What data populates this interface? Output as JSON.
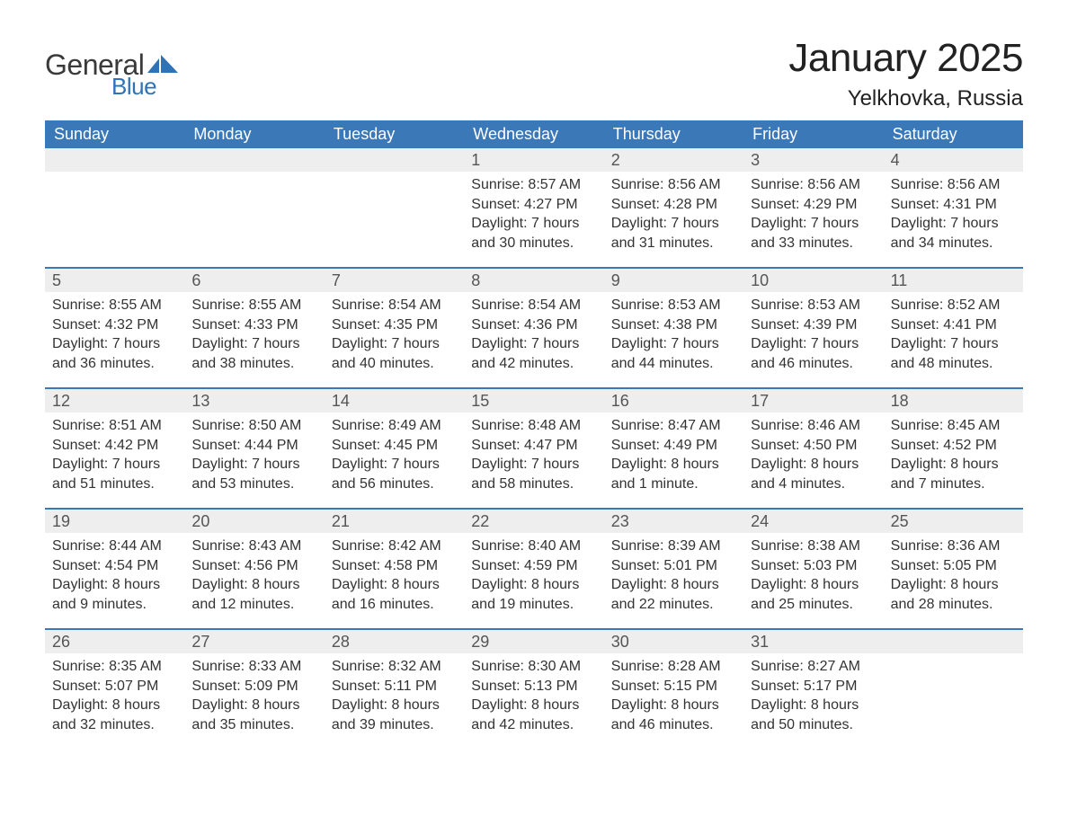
{
  "colors": {
    "header_bg": "#3b78b8",
    "header_text": "#ffffff",
    "daynum_bg": "#eeeeee",
    "daynum_text": "#555555",
    "body_text": "#333333",
    "week_border": "#3b78b8",
    "logo_general": "#3a3a3a",
    "logo_blue": "#2f73b7",
    "background": "#ffffff"
  },
  "logo": {
    "part1": "General",
    "part2": "Blue"
  },
  "title": "January 2025",
  "location": "Yelkhovka, Russia",
  "day_headers": [
    "Sunday",
    "Monday",
    "Tuesday",
    "Wednesday",
    "Thursday",
    "Friday",
    "Saturday"
  ],
  "weeks": [
    [
      null,
      null,
      null,
      {
        "n": "1",
        "sunrise": "8:57 AM",
        "sunset": "4:27 PM",
        "daylight": "7 hours and 30 minutes."
      },
      {
        "n": "2",
        "sunrise": "8:56 AM",
        "sunset": "4:28 PM",
        "daylight": "7 hours and 31 minutes."
      },
      {
        "n": "3",
        "sunrise": "8:56 AM",
        "sunset": "4:29 PM",
        "daylight": "7 hours and 33 minutes."
      },
      {
        "n": "4",
        "sunrise": "8:56 AM",
        "sunset": "4:31 PM",
        "daylight": "7 hours and 34 minutes."
      }
    ],
    [
      {
        "n": "5",
        "sunrise": "8:55 AM",
        "sunset": "4:32 PM",
        "daylight": "7 hours and 36 minutes."
      },
      {
        "n": "6",
        "sunrise": "8:55 AM",
        "sunset": "4:33 PM",
        "daylight": "7 hours and 38 minutes."
      },
      {
        "n": "7",
        "sunrise": "8:54 AM",
        "sunset": "4:35 PM",
        "daylight": "7 hours and 40 minutes."
      },
      {
        "n": "8",
        "sunrise": "8:54 AM",
        "sunset": "4:36 PM",
        "daylight": "7 hours and 42 minutes."
      },
      {
        "n": "9",
        "sunrise": "8:53 AM",
        "sunset": "4:38 PM",
        "daylight": "7 hours and 44 minutes."
      },
      {
        "n": "10",
        "sunrise": "8:53 AM",
        "sunset": "4:39 PM",
        "daylight": "7 hours and 46 minutes."
      },
      {
        "n": "11",
        "sunrise": "8:52 AM",
        "sunset": "4:41 PM",
        "daylight": "7 hours and 48 minutes."
      }
    ],
    [
      {
        "n": "12",
        "sunrise": "8:51 AM",
        "sunset": "4:42 PM",
        "daylight": "7 hours and 51 minutes."
      },
      {
        "n": "13",
        "sunrise": "8:50 AM",
        "sunset": "4:44 PM",
        "daylight": "7 hours and 53 minutes."
      },
      {
        "n": "14",
        "sunrise": "8:49 AM",
        "sunset": "4:45 PM",
        "daylight": "7 hours and 56 minutes."
      },
      {
        "n": "15",
        "sunrise": "8:48 AM",
        "sunset": "4:47 PM",
        "daylight": "7 hours and 58 minutes."
      },
      {
        "n": "16",
        "sunrise": "8:47 AM",
        "sunset": "4:49 PM",
        "daylight": "8 hours and 1 minute."
      },
      {
        "n": "17",
        "sunrise": "8:46 AM",
        "sunset": "4:50 PM",
        "daylight": "8 hours and 4 minutes."
      },
      {
        "n": "18",
        "sunrise": "8:45 AM",
        "sunset": "4:52 PM",
        "daylight": "8 hours and 7 minutes."
      }
    ],
    [
      {
        "n": "19",
        "sunrise": "8:44 AM",
        "sunset": "4:54 PM",
        "daylight": "8 hours and 9 minutes."
      },
      {
        "n": "20",
        "sunrise": "8:43 AM",
        "sunset": "4:56 PM",
        "daylight": "8 hours and 12 minutes."
      },
      {
        "n": "21",
        "sunrise": "8:42 AM",
        "sunset": "4:58 PM",
        "daylight": "8 hours and 16 minutes."
      },
      {
        "n": "22",
        "sunrise": "8:40 AM",
        "sunset": "4:59 PM",
        "daylight": "8 hours and 19 minutes."
      },
      {
        "n": "23",
        "sunrise": "8:39 AM",
        "sunset": "5:01 PM",
        "daylight": "8 hours and 22 minutes."
      },
      {
        "n": "24",
        "sunrise": "8:38 AM",
        "sunset": "5:03 PM",
        "daylight": "8 hours and 25 minutes."
      },
      {
        "n": "25",
        "sunrise": "8:36 AM",
        "sunset": "5:05 PM",
        "daylight": "8 hours and 28 minutes."
      }
    ],
    [
      {
        "n": "26",
        "sunrise": "8:35 AM",
        "sunset": "5:07 PM",
        "daylight": "8 hours and 32 minutes."
      },
      {
        "n": "27",
        "sunrise": "8:33 AM",
        "sunset": "5:09 PM",
        "daylight": "8 hours and 35 minutes."
      },
      {
        "n": "28",
        "sunrise": "8:32 AM",
        "sunset": "5:11 PM",
        "daylight": "8 hours and 39 minutes."
      },
      {
        "n": "29",
        "sunrise": "8:30 AM",
        "sunset": "5:13 PM",
        "daylight": "8 hours and 42 minutes."
      },
      {
        "n": "30",
        "sunrise": "8:28 AM",
        "sunset": "5:15 PM",
        "daylight": "8 hours and 46 minutes."
      },
      {
        "n": "31",
        "sunrise": "8:27 AM",
        "sunset": "5:17 PM",
        "daylight": "8 hours and 50 minutes."
      },
      null
    ]
  ],
  "labels": {
    "sunrise": "Sunrise: ",
    "sunset": "Sunset: ",
    "daylight": "Daylight: "
  }
}
